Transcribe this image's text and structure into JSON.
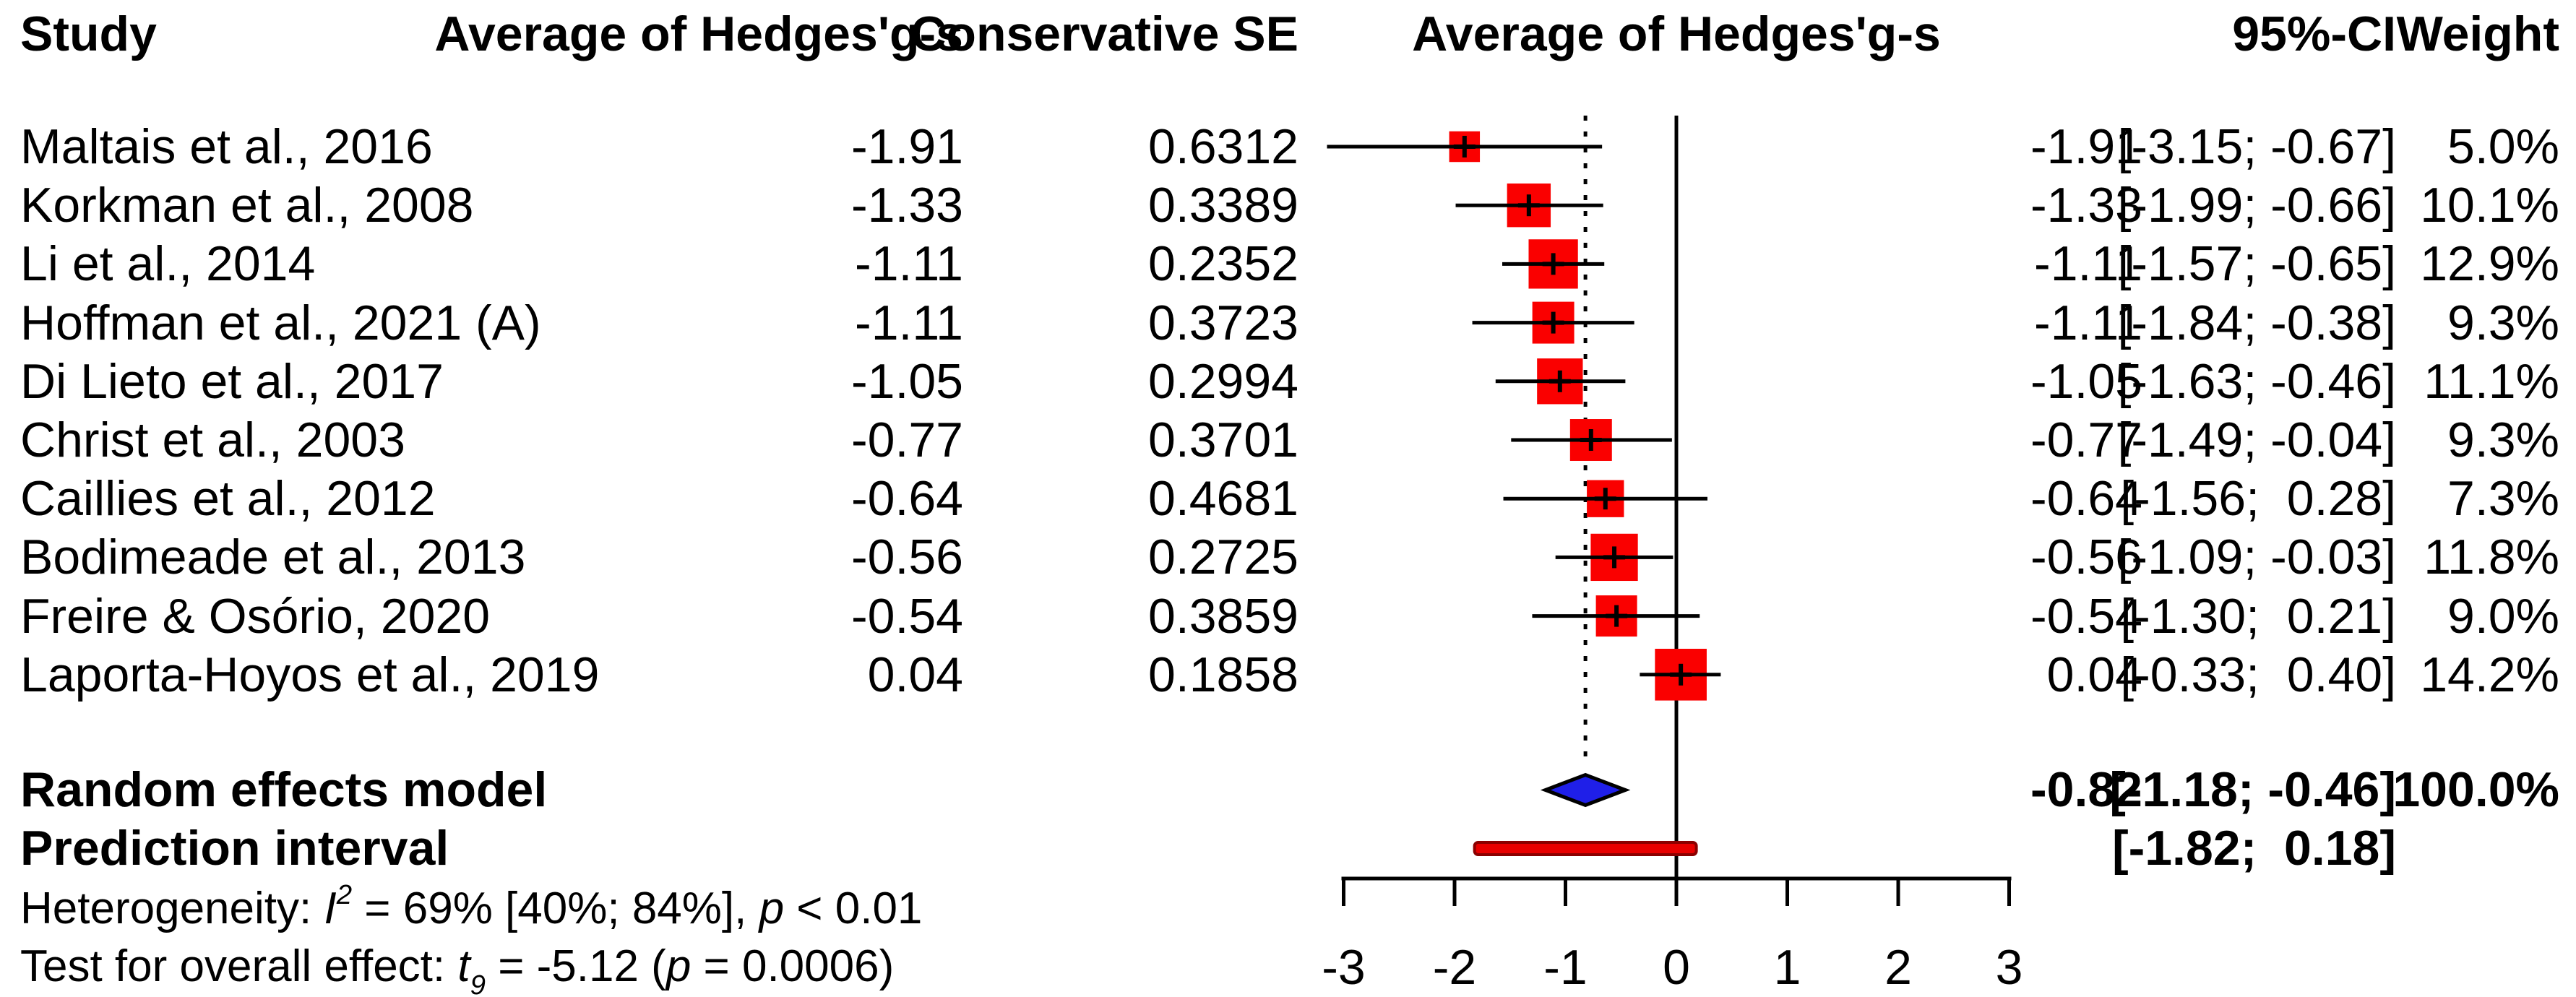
{
  "headers": {
    "study": "Study",
    "effect_col": "Average of Hedges'g-s",
    "se_col": "Conservative SE",
    "plot_col": "Average of Hedges'g-s",
    "ci_col": "95%-CI",
    "weight_col": "Weight"
  },
  "colors": {
    "square": "#fa0000",
    "square_cross": "#000000",
    "ci_line": "#000000",
    "zero_line": "#000000",
    "dashed_line": "#000000",
    "diamond_fill": "#1f1fe8",
    "diamond_border": "#000000",
    "prediction_fill": "#e80000",
    "prediction_border": "#8b0000",
    "axis": "#000000",
    "text": "#000000"
  },
  "chart_data": {
    "type": "forest",
    "title": "",
    "xlabel": "Average of Hedges'g-s",
    "axis": {
      "min": -3,
      "max": 3,
      "ticks": [
        -3,
        -2,
        -1,
        0,
        1,
        2,
        3
      ],
      "tick_labels": [
        "-3",
        "-2",
        "-1",
        "0",
        "1",
        "2",
        "3"
      ],
      "zero_line": 0,
      "pooled_dashed_line": -0.82
    },
    "rows": [
      {
        "study": "Maltais et al., 2016",
        "est": "-1.91",
        "estimate": -1.91,
        "se": "0.6312",
        "lower": -3.15,
        "upper": -0.67,
        "ci": "[-3.15; -0.67]",
        "weight": 5.0,
        "weight_label": "5.0%"
      },
      {
        "study": "Korkman et al., 2008",
        "est": "-1.33",
        "estimate": -1.33,
        "se": "0.3389",
        "lower": -1.99,
        "upper": -0.66,
        "ci": "[-1.99; -0.66]",
        "weight": 10.1,
        "weight_label": "10.1%"
      },
      {
        "study": "Li et al., 2014",
        "est": "-1.11",
        "estimate": -1.11,
        "se": "0.2352",
        "lower": -1.57,
        "upper": -0.65,
        "ci": "[-1.57; -0.65]",
        "weight": 12.9,
        "weight_label": "12.9%"
      },
      {
        "study": "Hoffman et al., 2021 (A)",
        "est": "-1.11",
        "estimate": -1.11,
        "se": "0.3723",
        "lower": -1.84,
        "upper": -0.38,
        "ci": "[-1.84; -0.38]",
        "weight": 9.3,
        "weight_label": "9.3%"
      },
      {
        "study": "Di Lieto et al., 2017",
        "est": "-1.05",
        "estimate": -1.05,
        "se": "0.2994",
        "lower": -1.63,
        "upper": -0.46,
        "ci": "[-1.63; -0.46]",
        "weight": 11.1,
        "weight_label": "11.1%"
      },
      {
        "study": "Christ et al., 2003",
        "est": "-0.77",
        "estimate": -0.77,
        "se": "0.3701",
        "lower": -1.49,
        "upper": -0.04,
        "ci": "[-1.49; -0.04]",
        "weight": 9.3,
        "weight_label": "9.3%"
      },
      {
        "study": "Caillies et al., 2012",
        "est": "-0.64",
        "estimate": -0.64,
        "se": "0.4681",
        "lower": -1.56,
        "upper": 0.28,
        "ci": "[-1.56;  0.28]",
        "weight": 7.3,
        "weight_label": "7.3%"
      },
      {
        "study": "Bodimeade et al., 2013",
        "est": "-0.56",
        "estimate": -0.56,
        "se": "0.2725",
        "lower": -1.09,
        "upper": -0.03,
        "ci": "[-1.09; -0.03]",
        "weight": 11.8,
        "weight_label": "11.8%"
      },
      {
        "study": "Freire & Osório, 2020",
        "est": "-0.54",
        "estimate": -0.54,
        "se": "0.3859",
        "lower": -1.3,
        "upper": 0.21,
        "ci": "[-1.30;  0.21]",
        "weight": 9.0,
        "weight_label": "9.0%"
      },
      {
        "study": "Laporta-Hoyos et al., 2019",
        "est": "0.04",
        "estimate": 0.04,
        "se": "0.1858",
        "lower": -0.33,
        "upper": 0.4,
        "ci": "[-0.33;  0.40]",
        "weight": 14.2,
        "weight_label": "14.2%"
      }
    ],
    "summary": {
      "label": "Random effects model",
      "est": "-0.82",
      "estimate": -0.82,
      "lower": -1.18,
      "upper": -0.46,
      "ci": "[-1.18; -0.46]",
      "weight_label": "100.0%"
    },
    "prediction": {
      "label": "Prediction interval",
      "lower": -1.82,
      "upper": 0.18,
      "ci": "[-1.82;  0.18]"
    },
    "footnotes": {
      "heterogeneity": {
        "parts": [
          {
            "t": "Heterogeneity: "
          },
          {
            "t": "I",
            "i": true
          },
          {
            "t": "2",
            "sup": true,
            "i": true
          },
          {
            "t": " = 69% [40%; 84%], "
          },
          {
            "t": "p",
            "i": true
          },
          {
            "t": " < 0.01"
          }
        ]
      },
      "overall_effect": {
        "parts": [
          {
            "t": "Test for overall effect: "
          },
          {
            "t": "t",
            "i": true
          },
          {
            "t": "9",
            "sub": true,
            "i": true
          },
          {
            "t": " = -5.12 ("
          },
          {
            "t": "p",
            "i": true
          },
          {
            "t": " = 0.0006)"
          }
        ]
      }
    }
  }
}
